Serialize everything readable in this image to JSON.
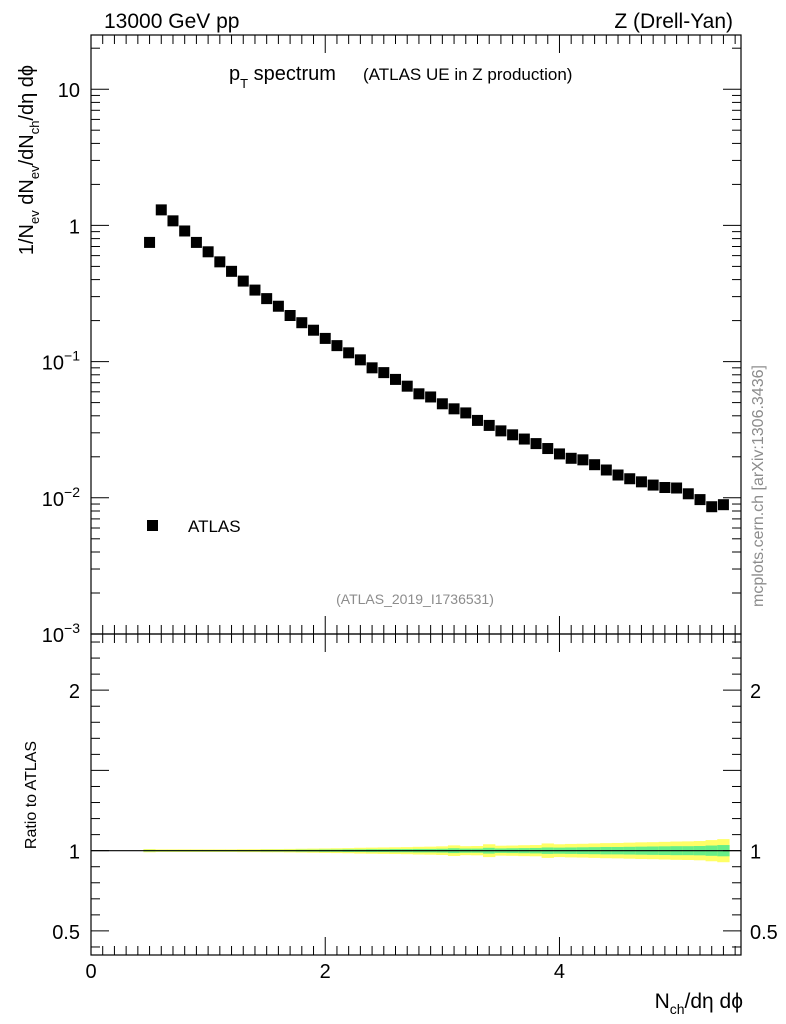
{
  "header": {
    "left": "13000 GeV pp",
    "right": "Z (Drell-Yan)"
  },
  "side_label": "mcplots.cern.ch [arXiv:1306.3436]",
  "chart_data": [
    {
      "type": "scatter",
      "title_main": "p",
      "title_sub": "T",
      "title_word": " spectrum",
      "title_note": "(ATLAS UE in Z production)",
      "ylabel": {
        "p1": "1/N",
        "s1": "ev",
        "p2": " dN",
        "s2": "ev",
        "p3": "/dN",
        "s3": "ch",
        "p4": "/dη dϕ"
      },
      "xlabel": {
        "p1": "N",
        "s1": "ch",
        "p2": "/dη dϕ"
      },
      "yscale": "log",
      "ylim": [
        0.001,
        25
      ],
      "xlim": [
        0,
        5.55
      ],
      "yticks": [
        {
          "base": "10",
          "exp": "",
          "value": 10
        },
        {
          "base": "1",
          "exp": "",
          "value": 1
        },
        {
          "base": "10",
          "exp": "−1",
          "value": 0.1
        },
        {
          "base": "10",
          "exp": "−2",
          "value": 0.01
        },
        {
          "base": "10",
          "exp": "−3",
          "value": 0.001
        }
      ],
      "legend": {
        "label": "ATLAS",
        "position": "lower-left"
      },
      "watermark": "(ATLAS_2019_I1736531)",
      "series": [
        {
          "name": "ATLAS",
          "color": "#000000",
          "x": [
            0.5,
            0.6,
            0.7,
            0.8,
            0.9,
            1.0,
            1.1,
            1.2,
            1.3,
            1.4,
            1.5,
            1.6,
            1.7,
            1.8,
            1.9,
            2.0,
            2.1,
            2.2,
            2.3,
            2.4,
            2.5,
            2.6,
            2.7,
            2.8,
            2.9,
            3.0,
            3.1,
            3.2,
            3.3,
            3.4,
            3.5,
            3.6,
            3.7,
            3.8,
            3.9,
            4.0,
            4.1,
            4.2,
            4.3,
            4.4,
            4.5,
            4.6,
            4.7,
            4.8,
            4.9,
            5.0,
            5.1,
            5.2,
            5.3,
            5.4
          ],
          "y": [
            0.75,
            1.3,
            1.08,
            0.91,
            0.75,
            0.64,
            0.54,
            0.46,
            0.39,
            0.335,
            0.29,
            0.255,
            0.218,
            0.193,
            0.17,
            0.148,
            0.131,
            0.116,
            0.103,
            0.09,
            0.083,
            0.074,
            0.066,
            0.058,
            0.055,
            0.049,
            0.045,
            0.042,
            0.037,
            0.034,
            0.031,
            0.029,
            0.027,
            0.025,
            0.023,
            0.021,
            0.0195,
            0.019,
            0.0175,
            0.016,
            0.0147,
            0.0138,
            0.0131,
            0.0124,
            0.0119,
            0.0118,
            0.0107,
            0.0097,
            0.0086,
            0.0089
          ]
        }
      ]
    },
    {
      "type": "line",
      "ylabel": "Ratio to ATLAS",
      "ylim": [
        0.35,
        2.35
      ],
      "xlim": [
        0,
        5.55
      ],
      "xticks": [
        {
          "label": "0",
          "value": 0
        },
        {
          "label": "2",
          "value": 2
        },
        {
          "label": "4",
          "value": 4
        }
      ],
      "yticks": [
        {
          "label": "2",
          "value": 2
        },
        {
          "label": "1",
          "value": 1
        },
        {
          "label": "0.5",
          "value": 0.5
        }
      ],
      "reference_line": 1,
      "colors": {
        "inner_band": "#66ee88",
        "outer_band": "#ffff66"
      },
      "band": {
        "x": [
          0.5,
          0.6,
          0.7,
          0.8,
          0.9,
          1.0,
          1.1,
          1.2,
          1.3,
          1.4,
          1.5,
          1.6,
          1.7,
          1.8,
          1.9,
          2.0,
          2.1,
          2.2,
          2.3,
          2.4,
          2.5,
          2.6,
          2.7,
          2.8,
          2.9,
          3.0,
          3.1,
          3.2,
          3.3,
          3.4,
          3.5,
          3.6,
          3.7,
          3.8,
          3.9,
          4.0,
          4.1,
          4.2,
          4.3,
          4.4,
          4.5,
          4.6,
          4.7,
          4.8,
          4.9,
          5.0,
          5.1,
          5.2,
          5.3,
          5.4
        ],
        "inner": [
          0.005,
          0.004,
          0.004,
          0.004,
          0.004,
          0.004,
          0.004,
          0.004,
          0.004,
          0.004,
          0.005,
          0.005,
          0.005,
          0.006,
          0.006,
          0.007,
          0.007,
          0.008,
          0.008,
          0.009,
          0.009,
          0.01,
          0.01,
          0.011,
          0.011,
          0.012,
          0.015,
          0.013,
          0.013,
          0.018,
          0.014,
          0.015,
          0.016,
          0.017,
          0.02,
          0.019,
          0.02,
          0.021,
          0.022,
          0.023,
          0.023,
          0.024,
          0.025,
          0.026,
          0.027,
          0.028,
          0.028,
          0.029,
          0.032,
          0.035
        ],
        "outer": [
          0.01,
          0.008,
          0.008,
          0.008,
          0.008,
          0.008,
          0.008,
          0.008,
          0.009,
          0.009,
          0.01,
          0.01,
          0.011,
          0.012,
          0.013,
          0.014,
          0.015,
          0.016,
          0.018,
          0.019,
          0.02,
          0.021,
          0.022,
          0.024,
          0.025,
          0.027,
          0.033,
          0.028,
          0.029,
          0.04,
          0.031,
          0.032,
          0.034,
          0.035,
          0.045,
          0.04,
          0.042,
          0.043,
          0.045,
          0.047,
          0.048,
          0.05,
          0.052,
          0.053,
          0.055,
          0.057,
          0.058,
          0.06,
          0.066,
          0.072
        ]
      }
    }
  ]
}
